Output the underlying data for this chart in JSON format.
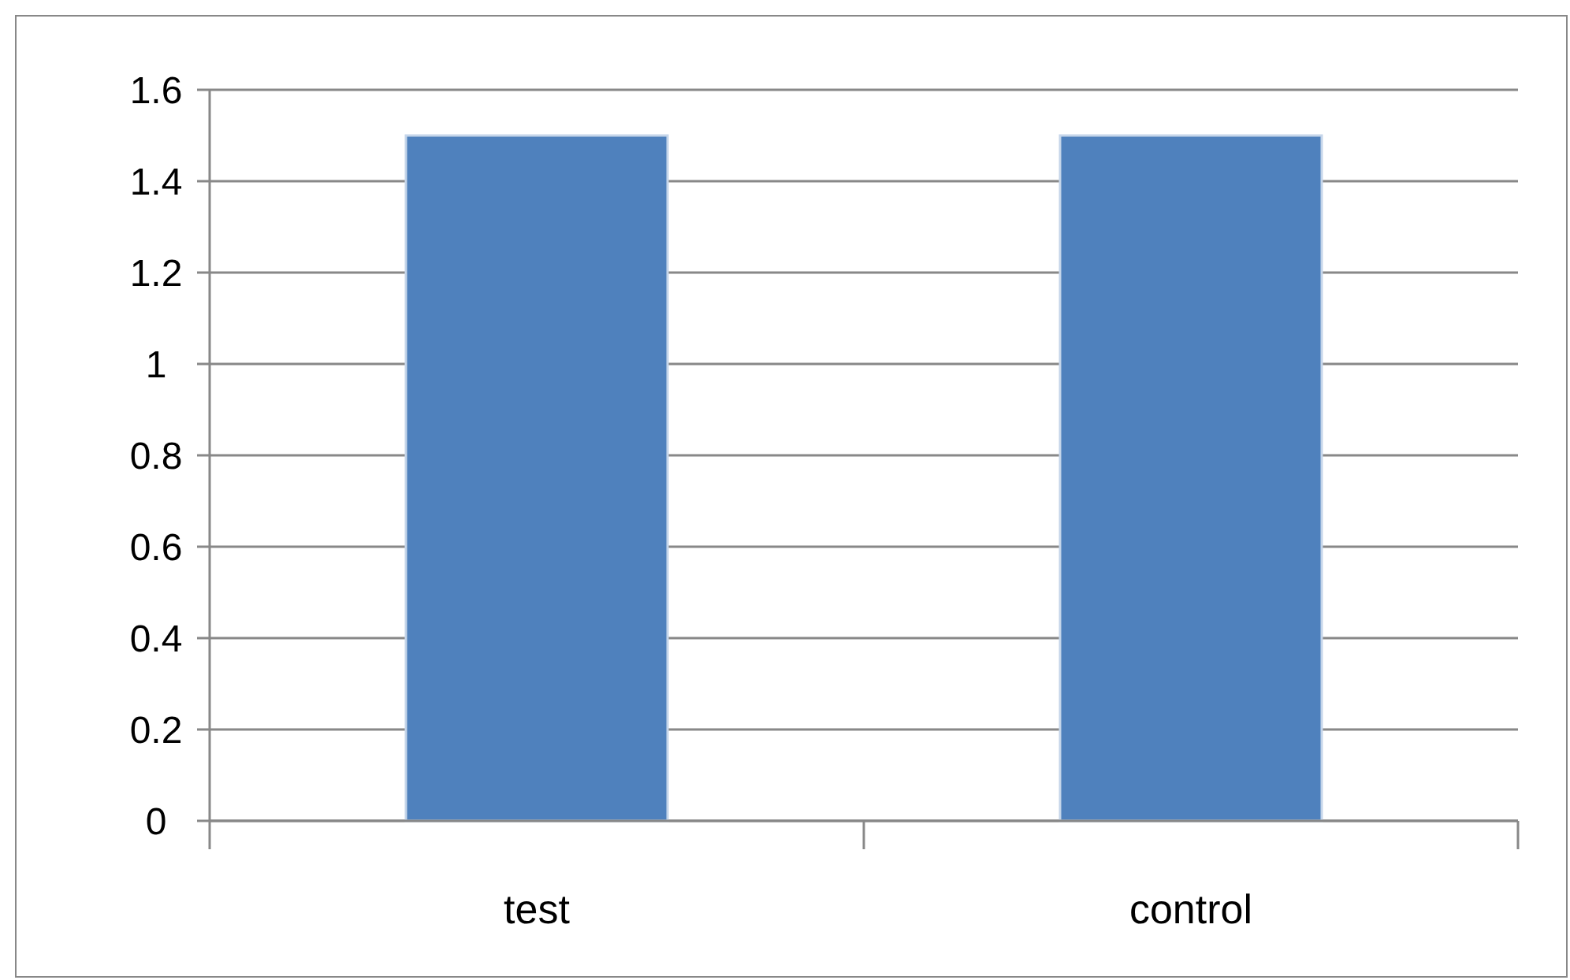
{
  "chart_data": {
    "type": "bar",
    "categories": [
      "test",
      "control"
    ],
    "values": [
      1.5,
      1.5
    ],
    "color": "#4f81bd",
    "ylim": [
      0,
      1.6
    ],
    "yticks": [
      0,
      0.2,
      0.4,
      0.6,
      0.8,
      1,
      1.2,
      1.4,
      1.6
    ],
    "grid": "y"
  }
}
